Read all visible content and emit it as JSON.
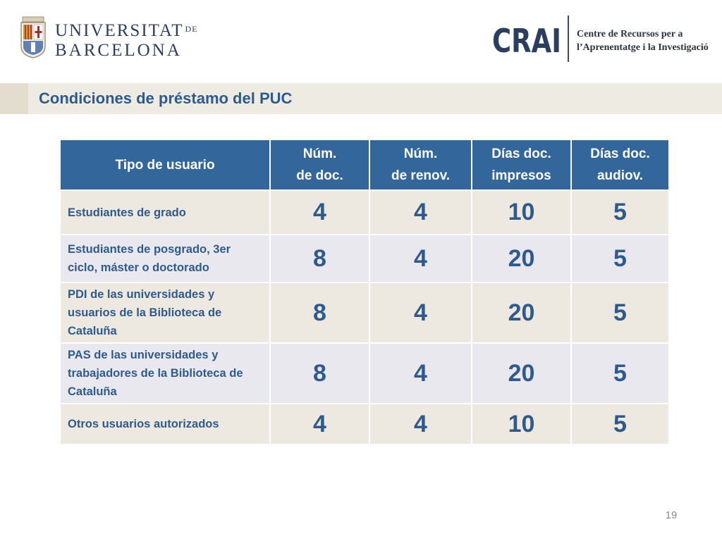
{
  "header": {
    "ub_logo": {
      "line1": "UNIVERSITAT",
      "line1_suffix": "DE",
      "line2": "BARCELONA",
      "color": "#2c3e5f"
    },
    "crai_logo": {
      "mark_text": "CRAI",
      "description_line1": "Centre de Recursos per a",
      "description_line2": "l’Aprenentatge i la Investigació",
      "color": "#2c3e5f"
    }
  },
  "title": "Condiciones de préstamo del PUC",
  "table": {
    "headers": {
      "user_type": "Tipo de usuario",
      "num_docs_l1": "Núm.",
      "num_docs_l2": "de doc.",
      "num_renew_l1": "Núm.",
      "num_renew_l2": "de renov.",
      "days_print_l1": "Días doc.",
      "days_print_l2": "impresos",
      "days_av_l1": "Días doc.",
      "days_av_l2": "audiov."
    },
    "rows": [
      {
        "type": "Estudiantes de grado",
        "docs": "4",
        "renewals": "4",
        "days_print": "10",
        "days_av": "5"
      },
      {
        "type": "Estudiantes de posgrado, 3er ciclo, máster o doctorado",
        "docs": "8",
        "renewals": "4",
        "days_print": "20",
        "days_av": "5"
      },
      {
        "type": "PDI de las universidades y usuarios de la Biblioteca de Cataluña",
        "docs": "8",
        "renewals": "4",
        "days_print": "20",
        "days_av": "5"
      },
      {
        "type": "PAS de las universidades y trabajadores de la Biblioteca de Cataluña",
        "docs": "8",
        "renewals": "4",
        "days_print": "20",
        "days_av": "5"
      },
      {
        "type": "Otros usuarios autorizados",
        "docs": "4",
        "renewals": "4",
        "days_print": "10",
        "days_av": "5"
      }
    ]
  },
  "page_number": "19",
  "colors": {
    "header_blue": "#33679b",
    "text_blue": "#2f5a8c",
    "row_beige": "#ede9e0",
    "row_lavender": "#e8e8ee"
  }
}
